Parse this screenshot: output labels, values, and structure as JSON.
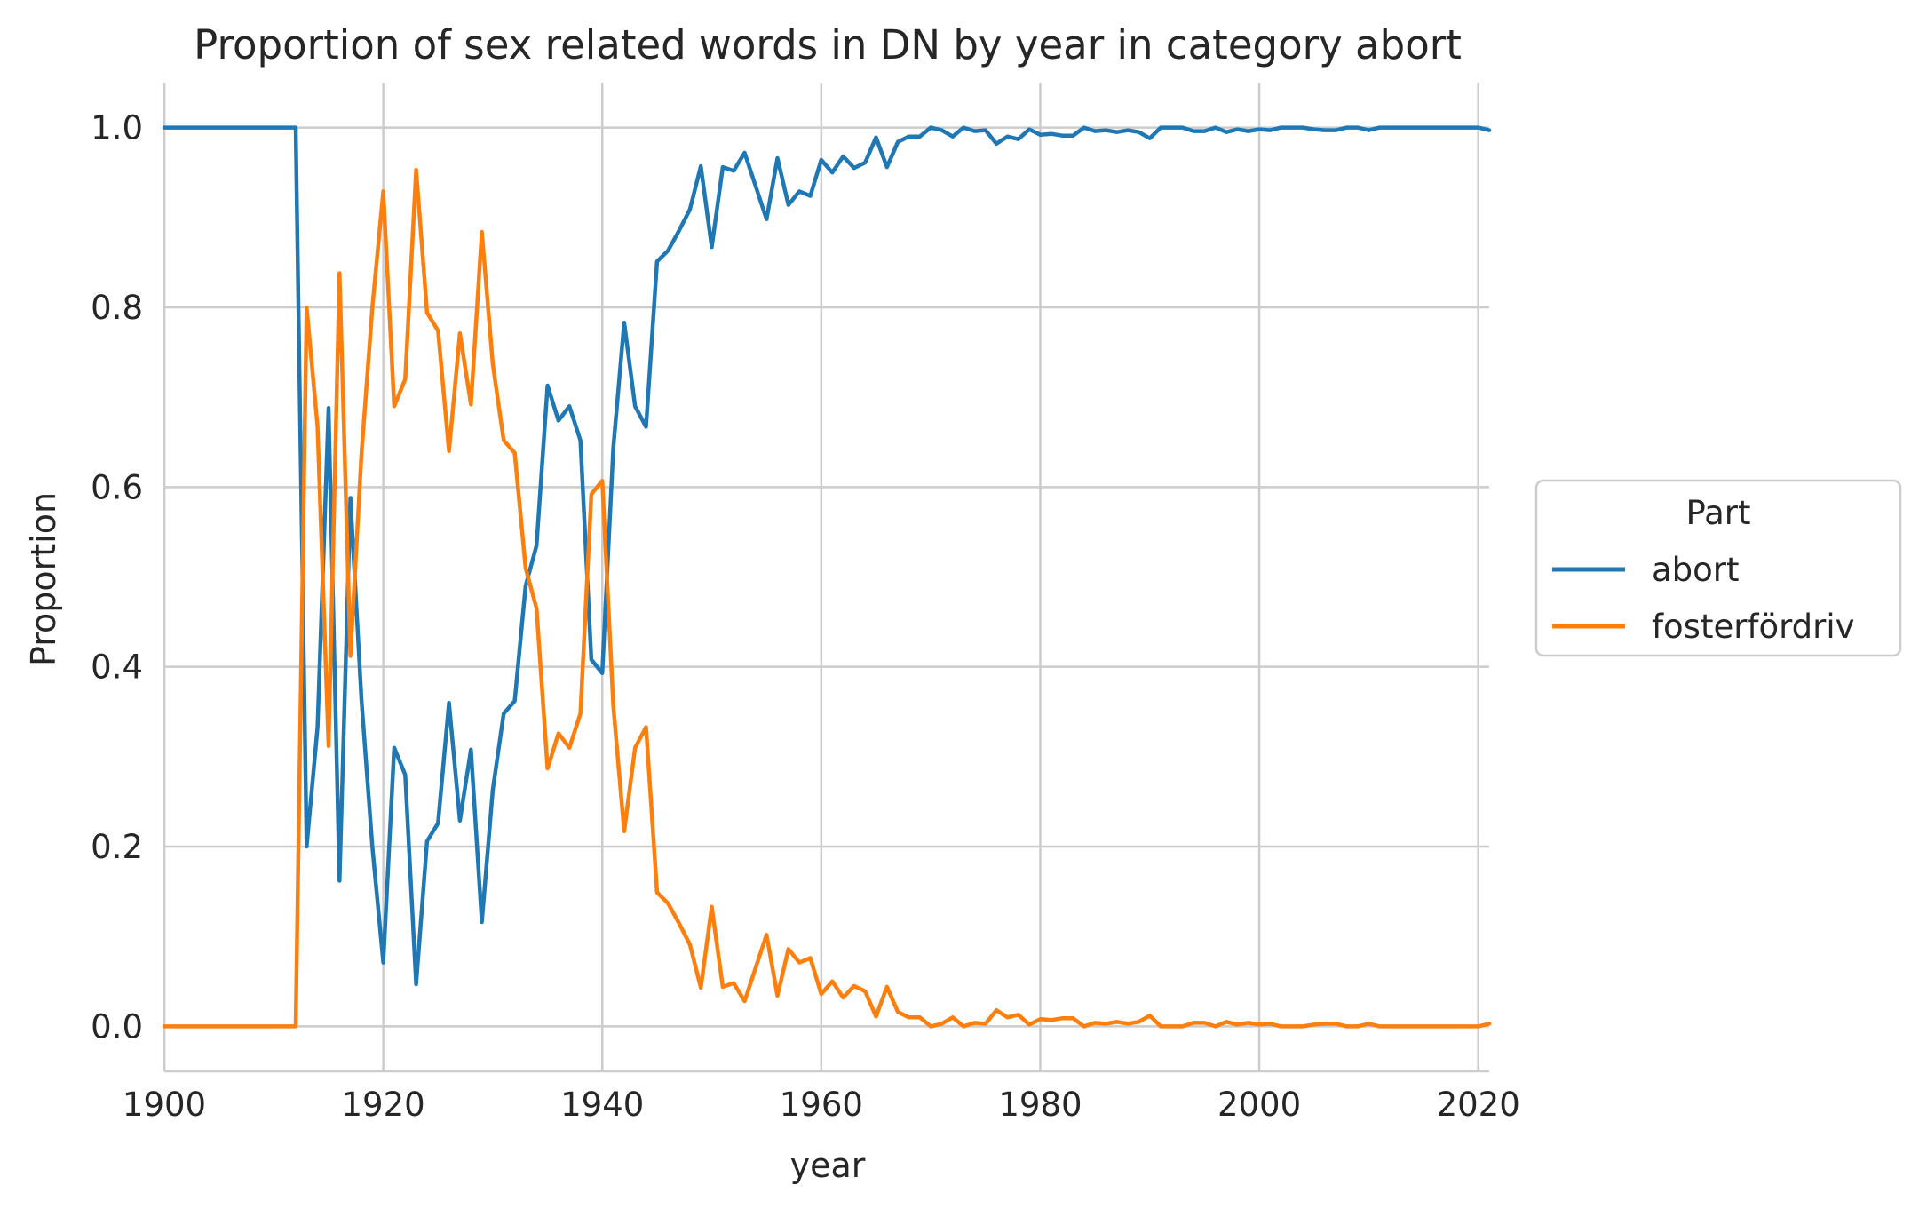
{
  "chart_data": {
    "type": "line",
    "title": "Proportion of sex related words in DN by year in category abort",
    "xlabel": "year",
    "ylabel": "Proportion",
    "xlim": [
      1900,
      2021
    ],
    "ylim": [
      -0.05,
      1.05
    ],
    "xticks": [
      1900,
      1920,
      1940,
      1960,
      1980,
      2000,
      2020
    ],
    "yticks": [
      "0.0",
      "0.2",
      "0.4",
      "0.6",
      "0.8",
      "1.0"
    ],
    "grid": true,
    "legend": {
      "title": "Part",
      "placement": "right",
      "entries": [
        "abort",
        "fosterfördriv"
      ]
    },
    "x": [
      1900,
      1901,
      1902,
      1903,
      1904,
      1905,
      1906,
      1907,
      1908,
      1909,
      1910,
      1911,
      1912,
      1913,
      1914,
      1915,
      1916,
      1917,
      1918,
      1919,
      1920,
      1921,
      1922,
      1923,
      1924,
      1925,
      1926,
      1927,
      1928,
      1929,
      1930,
      1931,
      1932,
      1933,
      1934,
      1935,
      1936,
      1937,
      1938,
      1939,
      1940,
      1941,
      1942,
      1943,
      1944,
      1945,
      1946,
      1947,
      1948,
      1949,
      1950,
      1951,
      1952,
      1953,
      1954,
      1955,
      1956,
      1957,
      1958,
      1959,
      1960,
      1961,
      1962,
      1963,
      1964,
      1965,
      1966,
      1967,
      1968,
      1969,
      1970,
      1971,
      1972,
      1973,
      1974,
      1975,
      1976,
      1977,
      1978,
      1979,
      1980,
      1981,
      1982,
      1983,
      1984,
      1985,
      1986,
      1987,
      1988,
      1989,
      1990,
      1991,
      1992,
      1993,
      1994,
      1995,
      1996,
      1997,
      1998,
      1999,
      2000,
      2001,
      2002,
      2003,
      2004,
      2005,
      2006,
      2007,
      2008,
      2009,
      2010,
      2011,
      2012,
      2013,
      2014,
      2015,
      2016,
      2017,
      2018,
      2019,
      2020,
      2021
    ],
    "series": [
      {
        "name": "abort",
        "color": "#1f77b4",
        "values": [
          1,
          1,
          1,
          1,
          1,
          1,
          1,
          1,
          1,
          1,
          1,
          1,
          1,
          0.2,
          0.333,
          0.688,
          0.162,
          0.588,
          0.364,
          0.2,
          0.071,
          0.31,
          0.28,
          0.047,
          0.206,
          0.226,
          0.36,
          0.229,
          0.308,
          0.116,
          0.263,
          0.348,
          0.362,
          0.49,
          0.535,
          0.713,
          0.674,
          0.69,
          0.652,
          0.408,
          0.393,
          0.643,
          0.783,
          0.69,
          0.667,
          0.851,
          0.863,
          0.885,
          0.909,
          0.957,
          0.867,
          0.956,
          0.952,
          0.972,
          0.935,
          0.898,
          0.966,
          0.914,
          0.929,
          0.924,
          0.964,
          0.95,
          0.968,
          0.955,
          0.961,
          0.989,
          0.956,
          0.984,
          0.99,
          0.99,
          1,
          0.997,
          0.99,
          1,
          0.996,
          0.997,
          0.982,
          0.99,
          0.987,
          0.998,
          0.992,
          0.993,
          0.991,
          0.991,
          1,
          0.996,
          0.997,
          0.995,
          0.997,
          0.995,
          0.988,
          1,
          1,
          1,
          0.996,
          0.996,
          1,
          0.995,
          0.998,
          0.996,
          0.998,
          0.997,
          1,
          1,
          1,
          0.998,
          0.997,
          0.997,
          1,
          1,
          0.997,
          1,
          1,
          1,
          1,
          1,
          1,
          1,
          1,
          1,
          1,
          0.997
        ]
      },
      {
        "name": "fosterfördriv",
        "color": "#ff7f0e",
        "values": [
          0,
          0,
          0,
          0,
          0,
          0,
          0,
          0,
          0,
          0,
          0,
          0,
          0,
          0.8,
          0.667,
          0.312,
          0.838,
          0.412,
          0.636,
          0.8,
          0.929,
          0.69,
          0.72,
          0.953,
          0.794,
          0.774,
          0.64,
          0.771,
          0.692,
          0.884,
          0.737,
          0.652,
          0.638,
          0.51,
          0.465,
          0.287,
          0.326,
          0.31,
          0.348,
          0.592,
          0.607,
          0.357,
          0.217,
          0.31,
          0.333,
          0.149,
          0.137,
          0.115,
          0.091,
          0.043,
          0.133,
          0.044,
          0.048,
          0.028,
          0.065,
          0.102,
          0.034,
          0.086,
          0.071,
          0.076,
          0.036,
          0.05,
          0.032,
          0.045,
          0.039,
          0.011,
          0.044,
          0.016,
          0.01,
          0.01,
          0,
          0.003,
          0.01,
          0,
          0.004,
          0.003,
          0.018,
          0.01,
          0.013,
          0.002,
          0.008,
          0.007,
          0.009,
          0.009,
          0,
          0.004,
          0.003,
          0.005,
          0.003,
          0.005,
          0.012,
          0,
          0,
          0,
          0.004,
          0.004,
          0,
          0.005,
          0.002,
          0.004,
          0.002,
          0.003,
          0,
          0,
          0,
          0.002,
          0.003,
          0.003,
          0,
          0,
          0.003,
          0,
          0,
          0,
          0,
          0,
          0,
          0,
          0,
          0,
          0,
          0.003
        ]
      }
    ]
  }
}
